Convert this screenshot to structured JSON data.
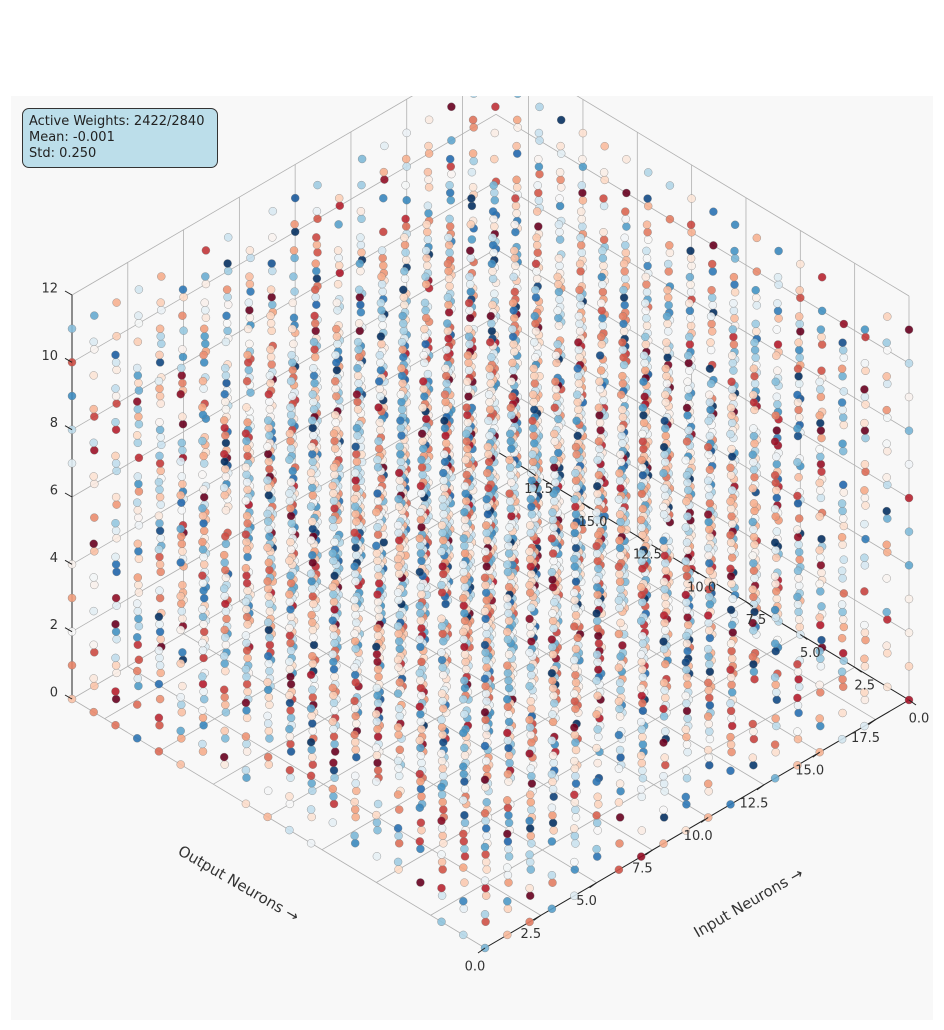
{
  "stats": {
    "active_weights": "Active Weights: 2422/2840",
    "mean": "Mean: -0.001",
    "std": "Std: 0.250"
  },
  "chart_data": {
    "type": "scatter",
    "projection": "3d",
    "xlabel": "Input Neurons →",
    "ylabel": "Output Neurons →",
    "zlabel": "",
    "x_ticks": [
      "0.0",
      "2.5",
      "5.0",
      "7.5",
      "10.0",
      "12.5",
      "15.0",
      "17.5"
    ],
    "y_ticks": [
      "0.0",
      "2.5",
      "5.0",
      "7.5",
      "10.0",
      "12.5",
      "15.0",
      "17.5"
    ],
    "z_ticks": [
      "0",
      "2",
      "4",
      "6",
      "8",
      "10",
      "12"
    ],
    "xlim": [
      0,
      19
    ],
    "ylim": [
      0,
      19
    ],
    "zlim": [
      0,
      12
    ],
    "grid": true,
    "grid_size": [
      20,
      20,
      12
    ],
    "colormap": "RdBu",
    "color_range": [
      -0.5,
      0.5
    ],
    "active_points": 2422,
    "total_points": 2840,
    "mean": -0.001,
    "std": 0.25,
    "colors": {
      "background": "#f8f8f8",
      "grid": "#b0b0b0",
      "stats_box": "#bcdeea"
    }
  }
}
